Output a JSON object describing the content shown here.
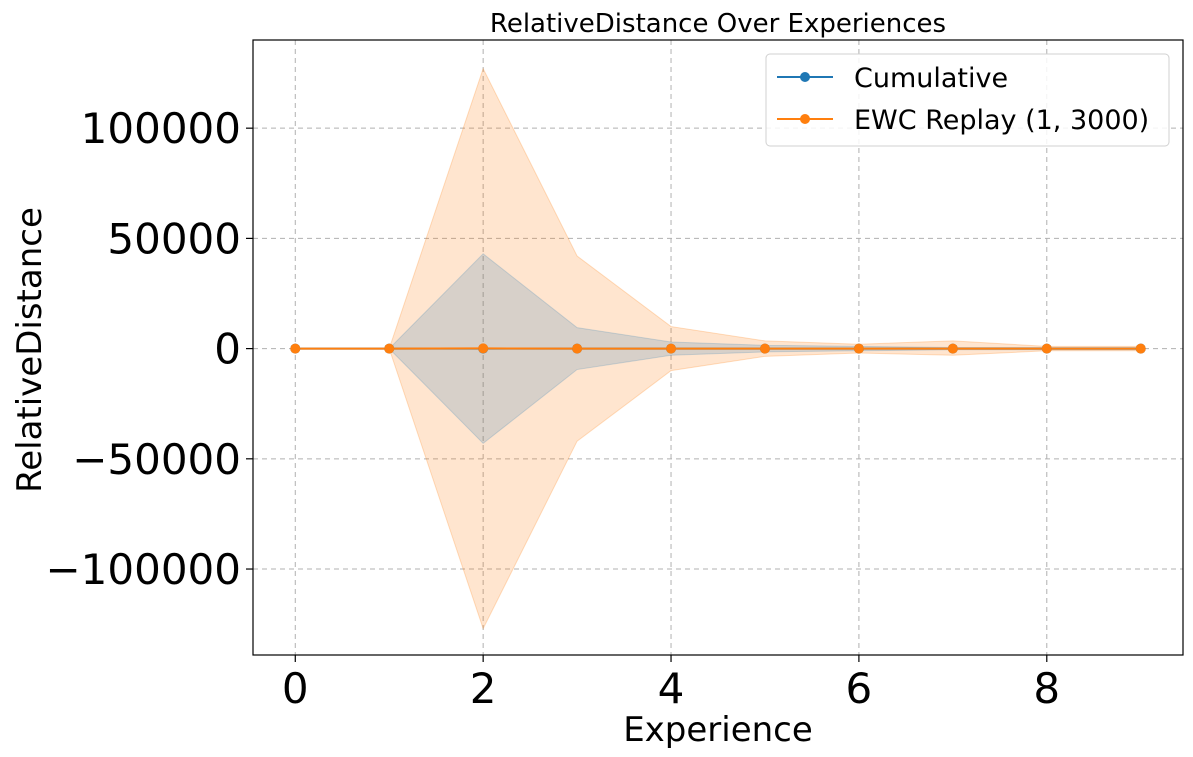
{
  "chart_data": {
    "type": "line",
    "title": "RelativeDistance Over Experiences",
    "xlabel": "Experience",
    "ylabel": "RelativeDistance",
    "xlim": [
      -0.45,
      9.45
    ],
    "ylim": [
      -139000,
      140000
    ],
    "xticks": [
      0,
      2,
      4,
      6,
      8
    ],
    "yticks": [
      -100000,
      -50000,
      0,
      50000,
      100000
    ],
    "ytick_labels": [
      "−100000",
      "−50000",
      "0",
      "50000",
      "100000"
    ],
    "grid": true,
    "legend_position": "top-right",
    "x": [
      0,
      1,
      2,
      3,
      4,
      5,
      6,
      7,
      8,
      9
    ],
    "series": [
      {
        "name": "Cumulative",
        "color": "#1f77b4",
        "values": [
          0,
          0,
          0,
          0,
          0,
          0,
          0,
          0,
          0,
          0
        ],
        "band_lower": [
          0,
          0,
          -43000,
          -9500,
          -3000,
          -1500,
          -1000,
          -500,
          -500,
          -500
        ],
        "band_upper": [
          0,
          0,
          43000,
          9500,
          3000,
          1500,
          1000,
          500,
          500,
          500
        ]
      },
      {
        "name": "EWC Replay (1, 3000)",
        "color": "#ff7f0e",
        "values": [
          0,
          0,
          100,
          0,
          0,
          0,
          0,
          0,
          0,
          0
        ],
        "band_lower": [
          0,
          0,
          -127000,
          -42000,
          -10000,
          -3500,
          -2000,
          -3000,
          -1000,
          -1000
        ],
        "band_upper": [
          0,
          0,
          127000,
          42000,
          10000,
          3500,
          2000,
          3500,
          1000,
          1000
        ]
      }
    ]
  }
}
